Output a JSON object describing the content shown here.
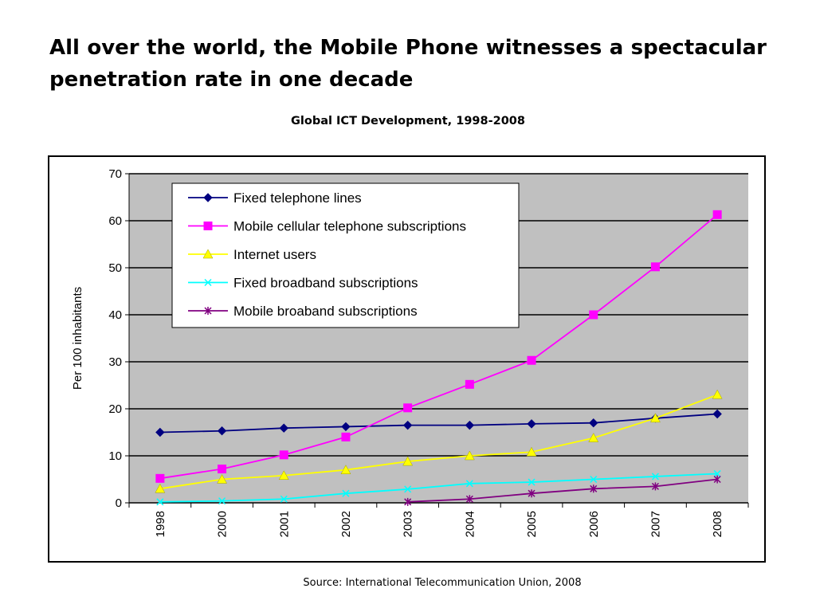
{
  "slide": {
    "title": "All over the world, the Mobile Phone witnesses a spectacular penetration rate in one decade",
    "source": "Source: International Telecommunication Union, 2008"
  },
  "chart_data": {
    "type": "line",
    "title": "Global ICT Development, 1998-2008",
    "xlabel": "",
    "ylabel": "Per 100 inhabitants",
    "ylim": [
      0,
      70
    ],
    "yticks": [
      0,
      10,
      20,
      30,
      40,
      50,
      60,
      70
    ],
    "grid": true,
    "plot_background": "#c0c0c0",
    "legend_position": "top-left inside plot",
    "categories": [
      "1998",
      "2000",
      "2001",
      "2002",
      "2003",
      "2004",
      "2005",
      "2006",
      "2007",
      "2008"
    ],
    "series": [
      {
        "name": "Fixed telephone lines",
        "color": "#000080",
        "marker": "diamond",
        "values": [
          15.0,
          15.3,
          15.9,
          16.2,
          16.5,
          16.5,
          16.8,
          17.0,
          18.0,
          18.9
        ]
      },
      {
        "name": "Mobile cellular telephone subscriptions",
        "color": "#ff00ff",
        "marker": "square",
        "values": [
          5.2,
          7.2,
          10.2,
          14.0,
          20.2,
          25.2,
          30.3,
          40.0,
          50.2,
          61.3
        ]
      },
      {
        "name": "Internet users",
        "color": "#ffff00",
        "marker": "triangle",
        "values": [
          3.0,
          5.0,
          5.8,
          7.0,
          8.8,
          10.0,
          10.8,
          13.8,
          18.0,
          23.0
        ]
      },
      {
        "name": "Fixed broadband subscriptions",
        "color": "#00ffff",
        "marker": "x",
        "values": [
          0.2,
          0.4,
          0.8,
          2.0,
          2.9,
          4.1,
          4.4,
          5.0,
          5.6,
          6.2
        ]
      },
      {
        "name": "Mobile broaband subscriptions",
        "color": "#800080",
        "marker": "star",
        "values": [
          null,
          null,
          null,
          null,
          0.2,
          0.8,
          2.0,
          3.0,
          3.5,
          5.0
        ]
      }
    ]
  }
}
